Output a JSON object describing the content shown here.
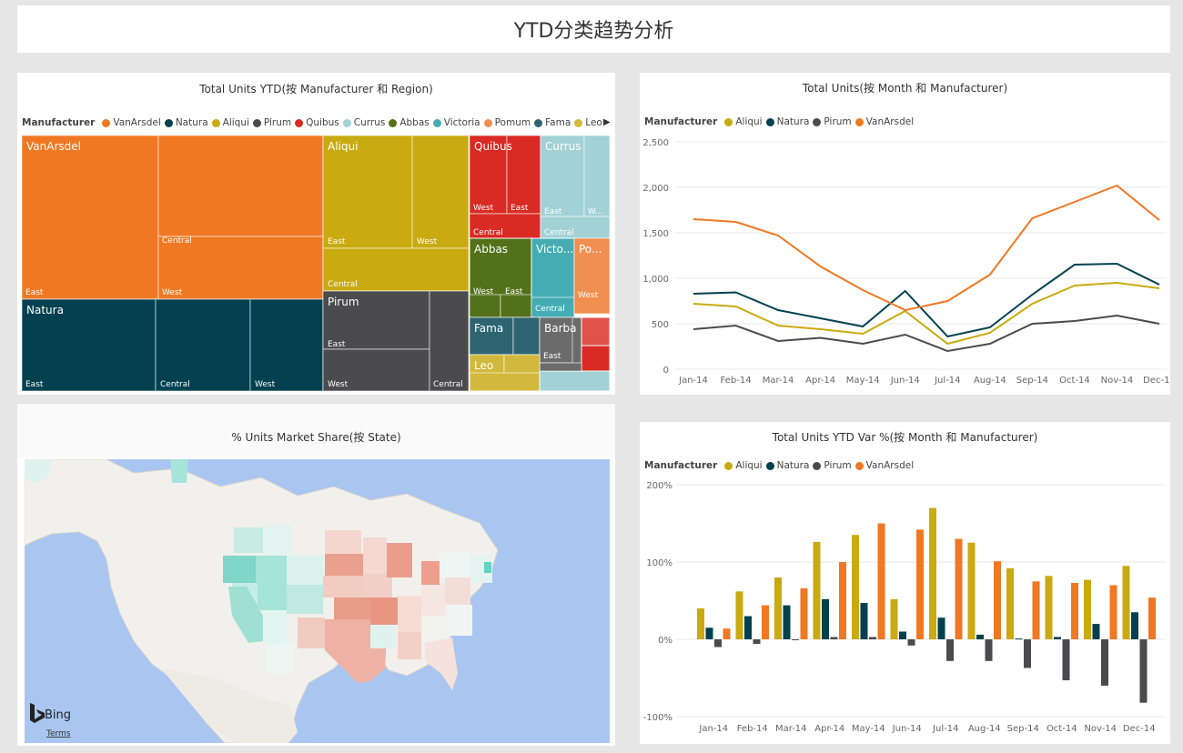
{
  "page": {
    "title": "YTD分类趋势分析"
  },
  "treemap": {
    "title": "Total Units YTD(按 Manufacturer 和 Region)",
    "legend_label": "Manufacturer",
    "legend": [
      {
        "name": "VanArsdel",
        "color": "#f07823"
      },
      {
        "name": "Natura",
        "color": "#034150"
      },
      {
        "name": "Aliqui",
        "color": "#c9aa10"
      },
      {
        "name": "Pirum",
        "color": "#4b4b4d"
      },
      {
        "name": "Quibus",
        "color": "#d92a24"
      },
      {
        "name": "Currus",
        "color": "#a2d1d6"
      },
      {
        "name": "Abbas",
        "color": "#527119"
      },
      {
        "name": "Victoria",
        "color": "#45acb4"
      },
      {
        "name": "Pomum",
        "color": "#f08f4f"
      },
      {
        "name": "Fama",
        "color": "#2e6470"
      },
      {
        "name": "Leo",
        "color": "#d2b83c"
      }
    ],
    "tiles": [
      {
        "manufacturer": "VanArsdel",
        "regions": [
          "East",
          "Central",
          "West"
        ]
      },
      {
        "manufacturer": "Natura",
        "regions": [
          "East",
          "Central",
          "West"
        ]
      },
      {
        "manufacturer": "Aliqui",
        "regions": [
          "East",
          "West",
          "Central"
        ]
      },
      {
        "manufacturer": "Pirum",
        "regions": [
          "East",
          "West",
          "Central"
        ]
      },
      {
        "manufacturer": "Quibus",
        "regions": [
          "West",
          "East",
          "Central"
        ]
      },
      {
        "manufacturer": "Currus",
        "regions": [
          "East",
          "W...",
          "Central"
        ]
      },
      {
        "manufacturer": "Abbas",
        "regions": [
          "West",
          "East"
        ]
      },
      {
        "manufacturer": "Victo...",
        "regions": [
          "Central"
        ]
      },
      {
        "manufacturer": "Po...",
        "regions": [
          "West"
        ]
      },
      {
        "manufacturer": "Fama",
        "regions": []
      },
      {
        "manufacturer": "Barba",
        "regions": [
          "East"
        ]
      },
      {
        "manufacturer": "Leo",
        "regions": []
      }
    ]
  },
  "line_chart": {
    "title": "Total Units(按 Month 和 Manufacturer)",
    "legend_label": "Manufacturer",
    "chart_data": {
      "type": "line",
      "x": [
        "Jan-14",
        "Feb-14",
        "Mar-14",
        "Apr-14",
        "May-14",
        "Jun-14",
        "Jul-14",
        "Aug-14",
        "Sep-14",
        "Oct-14",
        "Nov-14",
        "Dec-14"
      ],
      "y_ticks": [
        "0",
        "500",
        "1,000",
        "1,500",
        "2,000",
        "2,500"
      ],
      "ylim": [
        0,
        2500
      ],
      "series": [
        {
          "name": "Aliqui",
          "color": "#c9aa10",
          "values": [
            720,
            690,
            480,
            440,
            390,
            640,
            280,
            400,
            720,
            920,
            950,
            890
          ]
        },
        {
          "name": "Natura",
          "color": "#034150",
          "values": [
            830,
            845,
            650,
            560,
            470,
            860,
            360,
            460,
            820,
            1150,
            1160,
            930
          ]
        },
        {
          "name": "Pirum",
          "color": "#4b4b4d",
          "values": [
            440,
            480,
            310,
            345,
            280,
            380,
            200,
            280,
            500,
            530,
            590,
            500
          ]
        },
        {
          "name": "VanArsdel",
          "color": "#f07823",
          "values": [
            1650,
            1620,
            1470,
            1130,
            870,
            650,
            750,
            1040,
            1660,
            1840,
            2020,
            1640
          ]
        }
      ]
    }
  },
  "map": {
    "title": "% Units Market Share(按 State)",
    "bing_label": "Bing",
    "terms_label": "Terms"
  },
  "bar_chart": {
    "title": "Total Units YTD Var %(按 Month 和 Manufacturer)",
    "legend_label": "Manufacturer",
    "chart_data": {
      "type": "bar",
      "categories": [
        "Jan-14",
        "Feb-14",
        "Mar-14",
        "Apr-14",
        "May-14",
        "Jun-14",
        "Jul-14",
        "Aug-14",
        "Sep-14",
        "Oct-14",
        "Nov-14",
        "Dec-14"
      ],
      "y_ticks": [
        "-100%",
        "0%",
        "100%",
        "200%"
      ],
      "ylim": [
        -100,
        200
      ],
      "series": [
        {
          "name": "Aliqui",
          "color": "#c9aa10",
          "values": [
            40,
            62,
            80,
            126,
            135,
            52,
            170,
            125,
            92,
            82,
            77,
            95
          ]
        },
        {
          "name": "Natura",
          "color": "#034150",
          "values": [
            15,
            30,
            44,
            52,
            47,
            10,
            28,
            6,
            1,
            3,
            20,
            35
          ]
        },
        {
          "name": "Pirum",
          "color": "#4b4b4d",
          "values": [
            -10,
            -6,
            0,
            3,
            3,
            -8,
            -28,
            -28,
            -37,
            -53,
            -60,
            -82
          ]
        },
        {
          "name": "VanArsdel",
          "color": "#f07823",
          "values": [
            14,
            44,
            66,
            100,
            150,
            142,
            130,
            101,
            75,
            73,
            70,
            54
          ]
        }
      ]
    }
  }
}
